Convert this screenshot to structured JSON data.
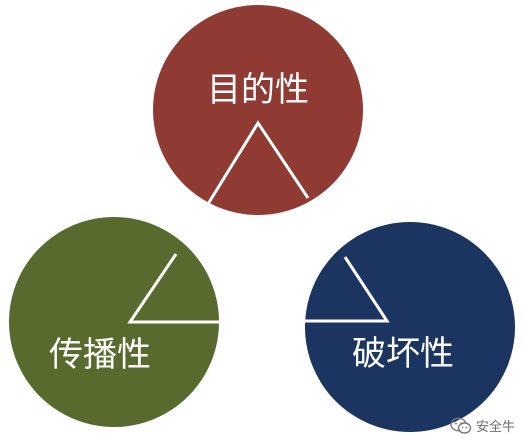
{
  "circles": [
    {
      "id": "top",
      "label": "目的性",
      "color": "#8f3a32"
    },
    {
      "id": "left",
      "label": "传播性",
      "color": "#586a2e"
    },
    {
      "id": "right",
      "label": "破坏性",
      "color": "#1b3560"
    }
  ],
  "watermark": {
    "text": "安全牛",
    "icon": "wechat-icon"
  }
}
